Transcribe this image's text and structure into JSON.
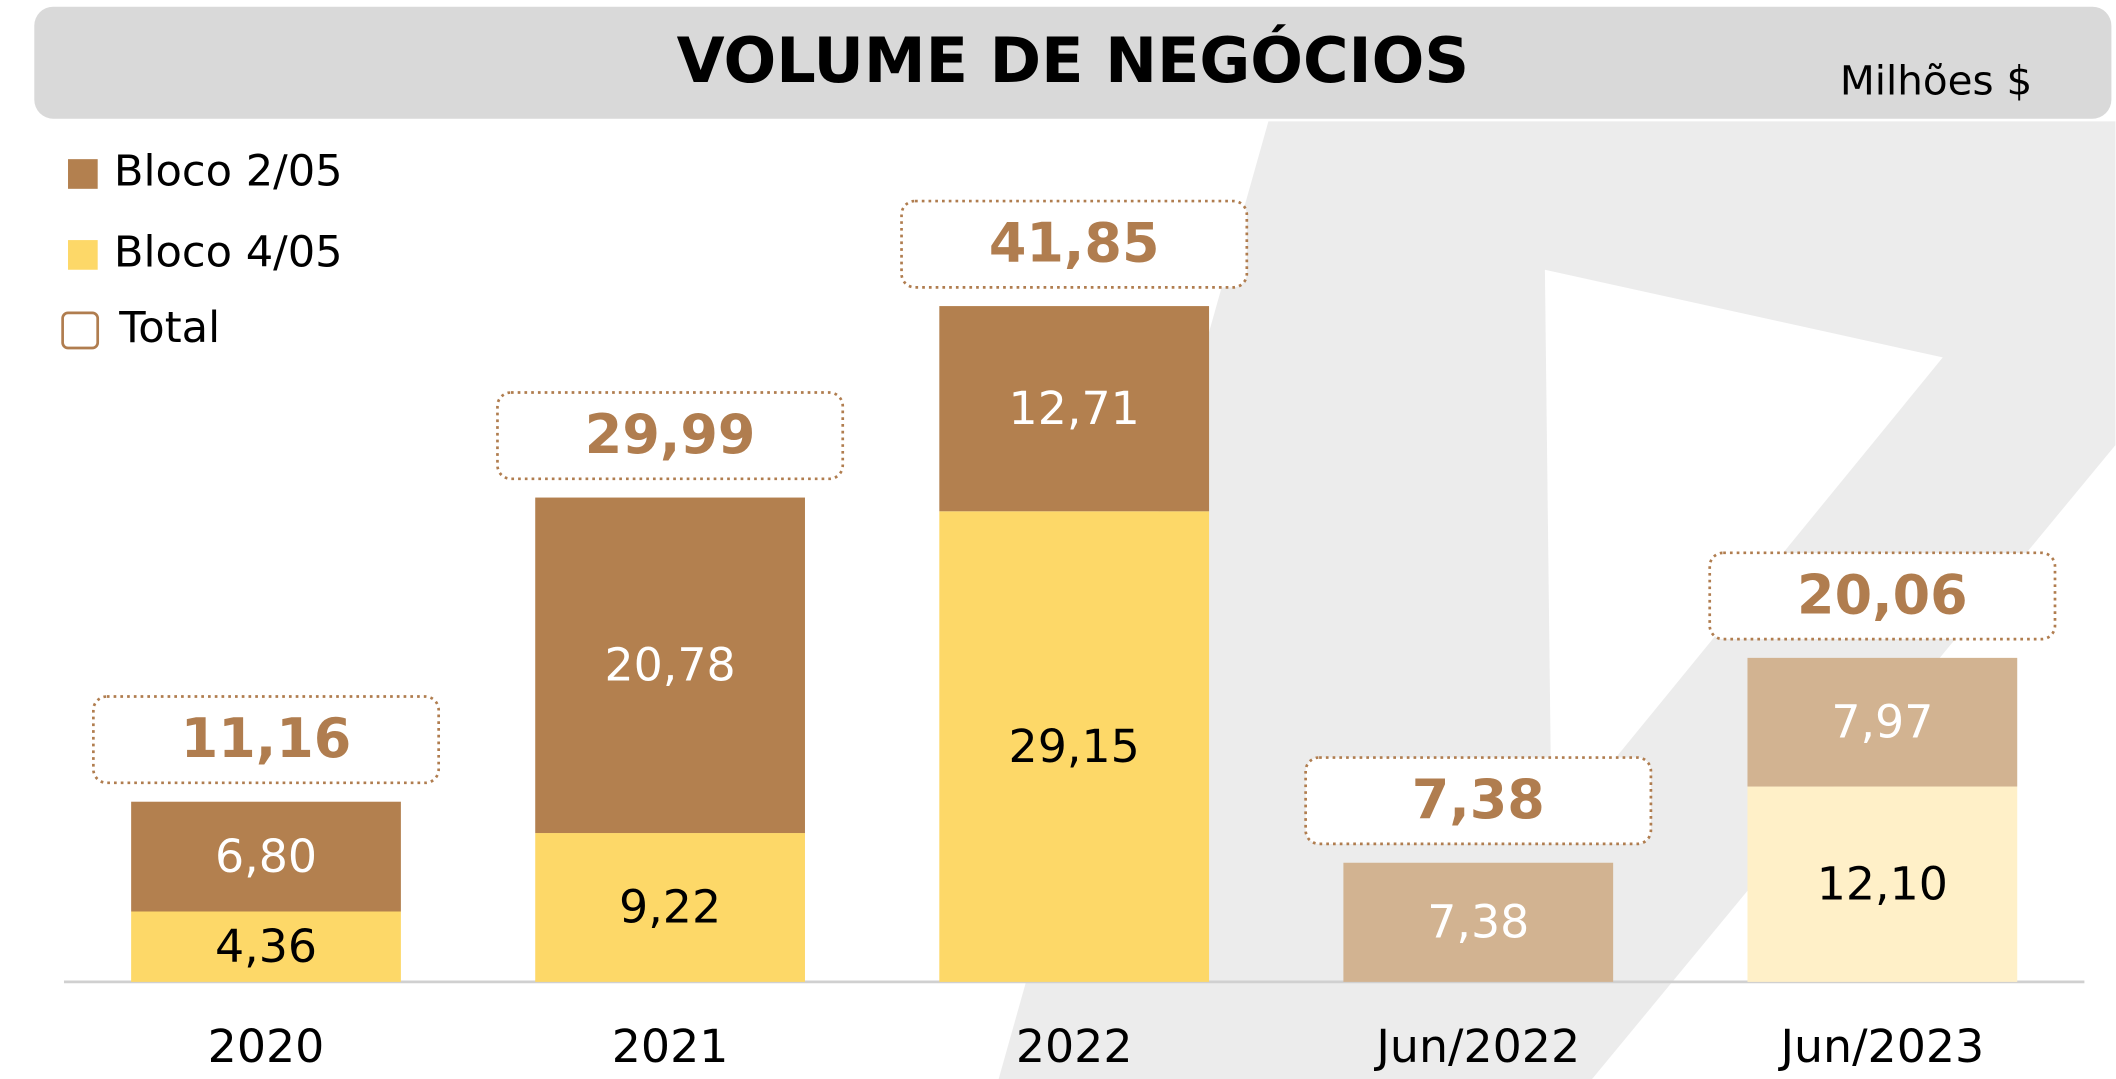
{
  "chart_data": {
    "type": "stacked_bar",
    "title": "VOLUME DE NEGÓCIOS",
    "subtitle": "Milhões $",
    "categories": [
      "2020",
      "2021",
      "2022",
      "Jun/2022",
      "Jun/2023"
    ],
    "series": [
      {
        "name": "Bloco 4/05",
        "color": "#fdd868",
        "point_colors": [
          "#fdd868",
          "#fdd868",
          "#fdd868",
          "#fff0c8",
          "#fff0c8"
        ],
        "label_color": "#000000",
        "values": [
          4.36,
          9.22,
          29.15,
          null,
          12.1
        ],
        "value_labels": [
          "4,36",
          "9,22",
          "29,15",
          null,
          "12,10"
        ]
      },
      {
        "name": "Bloco 2/05",
        "color": "#b3804f",
        "point_colors": [
          "#b3804f",
          "#b3804f",
          "#b3804f",
          "#d2b391",
          "#d2b391"
        ],
        "label_color": "#ffffff",
        "values": [
          6.8,
          20.78,
          12.71,
          7.38,
          7.97
        ],
        "value_labels": [
          "6,80",
          "20,78",
          "12,71",
          "7,38",
          "7,97"
        ]
      }
    ],
    "total_name": "Total",
    "total_color": "#b07d4f",
    "totals": [
      11.16,
      29.99,
      41.85,
      7.38,
      20.06
    ],
    "total_labels": [
      "11,16",
      "29,99",
      "41,85",
      "7,38",
      "20,06"
    ],
    "ylim": [
      0,
      50
    ],
    "legend": "top-left"
  }
}
